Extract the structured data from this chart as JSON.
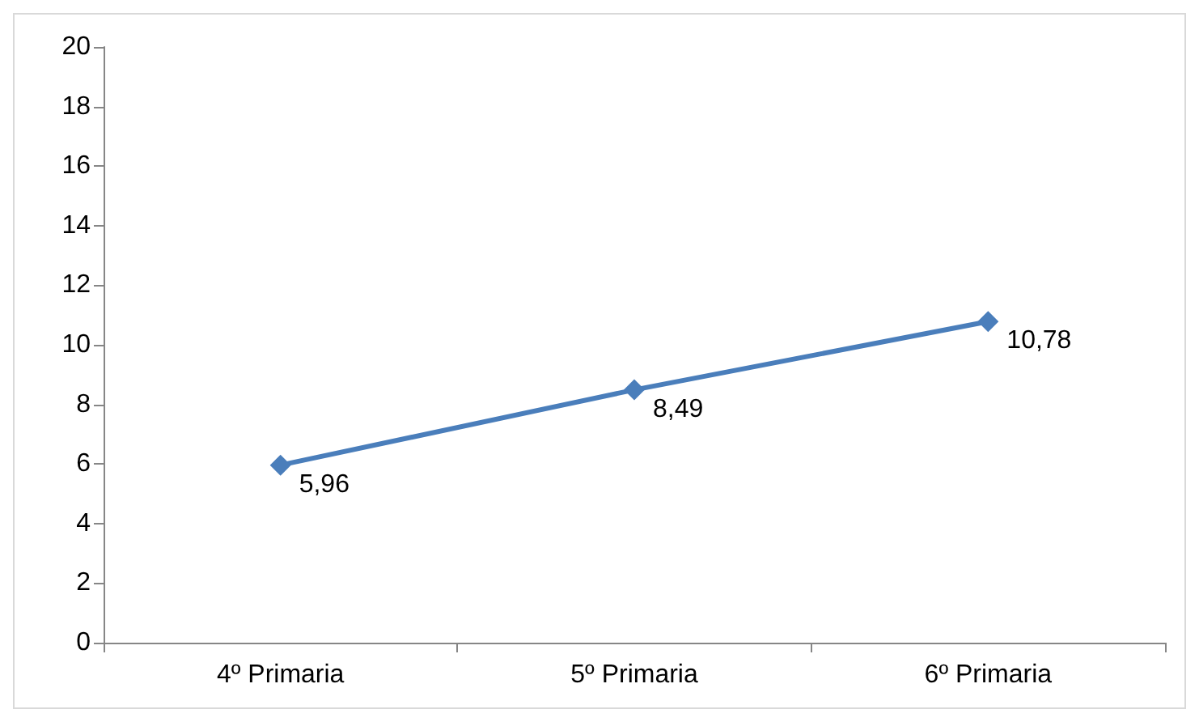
{
  "chart_data": {
    "type": "line",
    "categories": [
      "4º Primaria",
      "5º Primaria",
      "6º Primaria"
    ],
    "series": [
      {
        "color": "#4a7ebb",
        "values": [
          5.96,
          8.49,
          10.78
        ],
        "value_labels": [
          "5,96",
          "8,49",
          "10,78"
        ]
      }
    ],
    "ylim": [
      0,
      20
    ],
    "yticks": [
      0,
      2,
      4,
      6,
      8,
      10,
      12,
      14,
      16,
      18,
      20
    ],
    "grid": false,
    "marker": "diamond",
    "line_style": "solid"
  }
}
